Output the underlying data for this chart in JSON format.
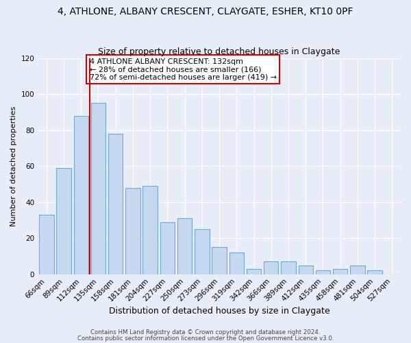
{
  "title": "4, ATHLONE, ALBANY CRESCENT, CLAYGATE, ESHER, KT10 0PF",
  "subtitle": "Size of property relative to detached houses in Claygate",
  "xlabel": "Distribution of detached houses by size in Claygate",
  "ylabel": "Number of detached properties",
  "bar_labels": [
    "66sqm",
    "89sqm",
    "112sqm",
    "135sqm",
    "158sqm",
    "181sqm",
    "204sqm",
    "227sqm",
    "250sqm",
    "273sqm",
    "296sqm",
    "319sqm",
    "342sqm",
    "366sqm",
    "389sqm",
    "412sqm",
    "435sqm",
    "458sqm",
    "481sqm",
    "504sqm",
    "527sqm"
  ],
  "bar_values": [
    33,
    59,
    88,
    95,
    78,
    48,
    49,
    29,
    31,
    25,
    15,
    12,
    3,
    7,
    7,
    5,
    2,
    3,
    5,
    2,
    0
  ],
  "bar_color": "#c5d8f0",
  "bar_edge_color": "#6fa8d4",
  "vline_x_index": 3,
  "vline_color": "#cc0000",
  "annotation_text": "4 ATHLONE ALBANY CRESCENT: 132sqm\n← 28% of detached houses are smaller (166)\n72% of semi-detached houses are larger (419) →",
  "annotation_box_color": "#ffffff",
  "annotation_box_edge": "#cc0000",
  "ylim": [
    0,
    120
  ],
  "yticks": [
    0,
    20,
    40,
    60,
    80,
    100,
    120
  ],
  "background_color": "#e8eef8",
  "footer_line1": "Contains HM Land Registry data © Crown copyright and database right 2024.",
  "footer_line2": "Contains public sector information licensed under the Open Government Licence v3.0.",
  "title_fontsize": 10,
  "subtitle_fontsize": 9
}
